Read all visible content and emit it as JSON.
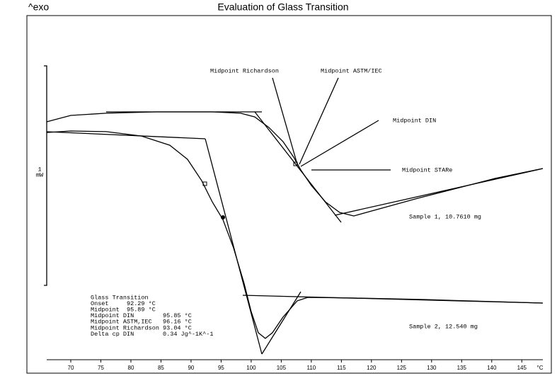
{
  "chart_data": {
    "type": "line",
    "title": "Evaluation of Glass Transition",
    "y_label": "^exo",
    "xlabel": "°C",
    "xlim": [
      66,
      148.5
    ],
    "xticks": [
      70,
      75,
      80,
      85,
      90,
      95,
      100,
      105,
      110,
      115,
      120,
      125,
      130,
      135,
      140,
      145
    ],
    "ylim": [
      0,
      1.5
    ],
    "scale_bar": {
      "value": 1,
      "unit": "mW"
    },
    "series": [
      {
        "name": "Sample 1, 10.7610 mg",
        "color": "#000000",
        "x": [
          66,
          70,
          75.88,
          84.12,
          93.53,
          98.24,
          100.59,
          102.94,
          105.29,
          107.06,
          108.24,
          110,
          112.35,
          114.71,
          117.06,
          127.65,
          140.59,
          148.47
        ],
        "values": [
          1.084,
          1.113,
          1.123,
          1.129,
          1.129,
          1.123,
          1.106,
          1.058,
          0.994,
          0.923,
          0.865,
          0.794,
          0.719,
          0.671,
          0.655,
          0.735,
          0.826,
          0.871
        ]
      },
      {
        "name": "Sample 2, 12.540 mg",
        "color": "#000000",
        "x": [
          66,
          70,
          75.88,
          81.76,
          86.47,
          89.41,
          91.76,
          93.53,
          95.29,
          97.06,
          98.82,
          100,
          101.18,
          102.35,
          103.53,
          105.29,
          107.65,
          109.41,
          117.06,
          128.82,
          148.47
        ],
        "values": [
          1.035,
          1.042,
          1.039,
          1.019,
          0.977,
          0.913,
          0.816,
          0.719,
          0.639,
          0.51,
          0.348,
          0.219,
          0.123,
          0.097,
          0.123,
          0.194,
          0.268,
          0.284,
          0.281,
          0.274,
          0.258
        ]
      }
    ],
    "annotations": [
      "Midpoint Richardson",
      "Midpoint ASTM/IEC",
      "Midpoint DIN",
      "Midpoint STARe"
    ],
    "results": [
      "Glass Transition",
      "Onset     92.29 °C",
      "Midpoint  95.89 °C",
      "Midpoint DIN        95.85 °C",
      "Midpoint ASTM,IEC   96.16 °C",
      "Midpoint Richardson 93.04 °C",
      "Delta cp DIN        0.34 Jg^-1K^-1"
    ]
  }
}
